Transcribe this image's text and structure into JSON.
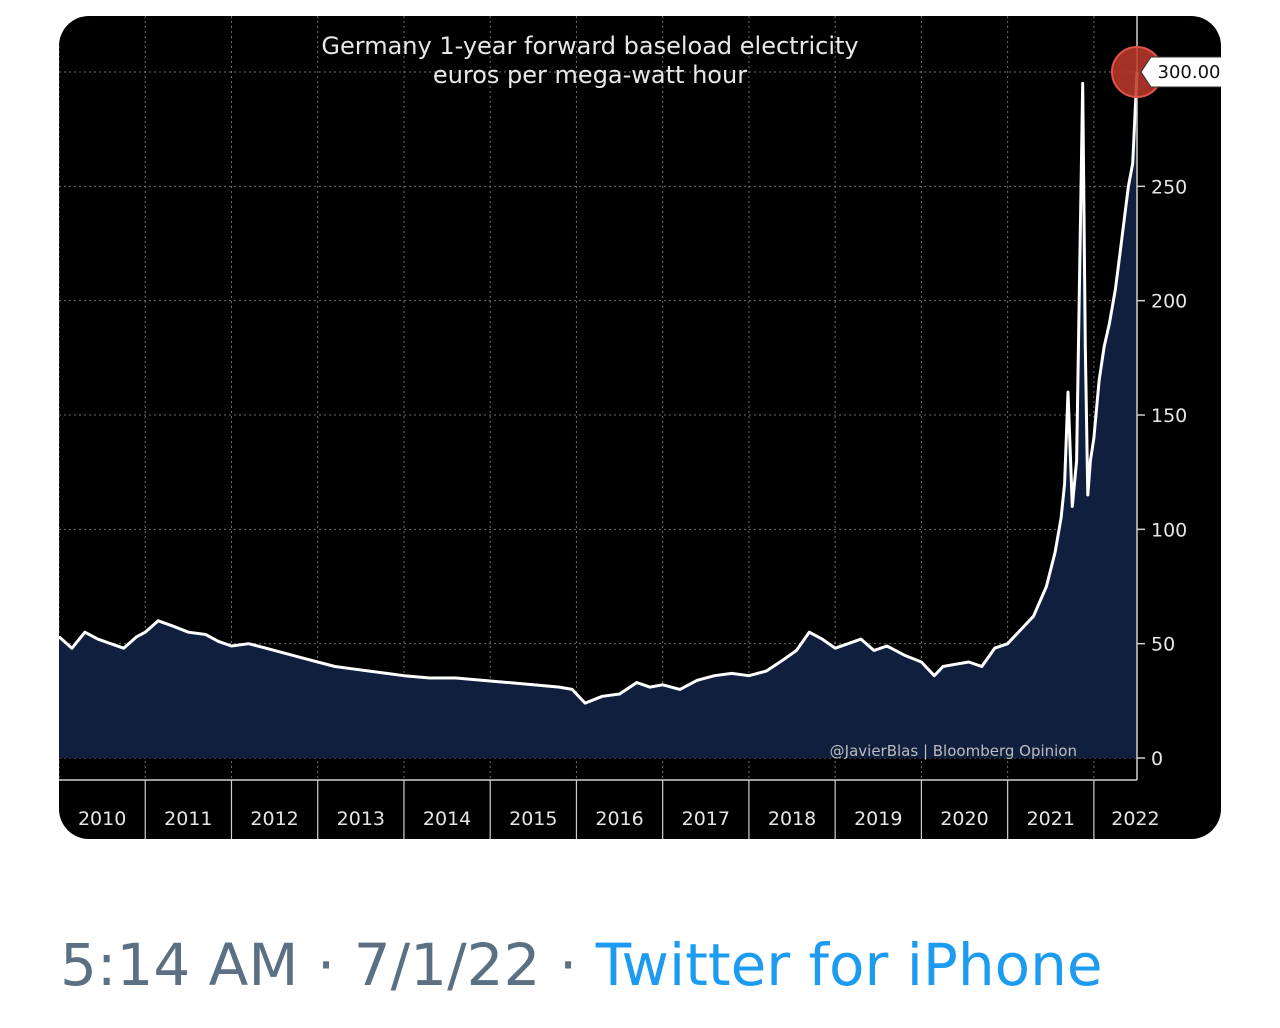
{
  "tweet": {
    "time": "5:14 AM",
    "date": "7/1/22",
    "separator": "·",
    "source": "Twitter for iPhone",
    "source_color": "#1d9bf0"
  },
  "chart_data": {
    "type": "area",
    "title": "Germany 1-year forward baseload electricity",
    "subtitle": "euros per mega-watt hour",
    "credit": "@JavierBlas | Bloomberg Opinion",
    "x_labels": [
      "2010",
      "2011",
      "2012",
      "2013",
      "2014",
      "2015",
      "2016",
      "2017",
      "2018",
      "2019",
      "2020",
      "2021",
      "2022"
    ],
    "y_ticks": [
      0,
      50,
      100,
      150,
      200,
      250
    ],
    "y_tick_labels": [
      "0",
      "50",
      "100",
      "150",
      "200",
      "250"
    ],
    "ylim": [
      0,
      300
    ],
    "xlim": [
      2010.0,
      2022.5
    ],
    "last_value": 300,
    "last_value_label": "300.00",
    "series": [
      {
        "x": [
          2010.0,
          2010.15,
          2010.3,
          2010.45,
          2010.6,
          2010.75,
          2010.9,
          2011.0,
          2011.15,
          2011.3,
          2011.5,
          2011.7,
          2011.85,
          2012.0,
          2012.2,
          2012.4,
          2012.6,
          2012.8,
          2013.0,
          2013.2,
          2013.4,
          2013.6,
          2013.8,
          2014.0,
          2014.3,
          2014.6,
          2014.9,
          2015.2,
          2015.5,
          2015.8,
          2015.95,
          2016.1,
          2016.3,
          2016.5,
          2016.7,
          2016.85,
          2017.0,
          2017.2,
          2017.4,
          2017.6,
          2017.8,
          2018.0,
          2018.2,
          2018.4,
          2018.55,
          2018.7,
          2018.85,
          2019.0,
          2019.15,
          2019.3,
          2019.45,
          2019.6,
          2019.8,
          2020.0,
          2020.15,
          2020.25,
          2020.4,
          2020.55,
          2020.7,
          2020.85,
          2021.0,
          2021.15,
          2021.3,
          2021.45,
          2021.55,
          2021.62,
          2021.66,
          2021.7,
          2021.75,
          2021.8,
          2021.87,
          2021.9,
          2021.93,
          2021.96,
          2022.0,
          2022.06,
          2022.12,
          2022.18,
          2022.25,
          2022.3,
          2022.35,
          2022.4,
          2022.45,
          2022.5
        ],
        "values": [
          53,
          48,
          55,
          52,
          50,
          48,
          53,
          55,
          60,
          58,
          55,
          54,
          51,
          49,
          50,
          48,
          46,
          44,
          42,
          40,
          39,
          38,
          37,
          36,
          35,
          35,
          34,
          33,
          32,
          31,
          30,
          24,
          27,
          28,
          33,
          31,
          32,
          30,
          34,
          36,
          37,
          36,
          38,
          43,
          47,
          55,
          52,
          48,
          50,
          52,
          47,
          49,
          45,
          42,
          36,
          40,
          41,
          42,
          40,
          48,
          50,
          56,
          62,
          75,
          90,
          105,
          120,
          160,
          110,
          130,
          295,
          180,
          115,
          130,
          140,
          165,
          180,
          190,
          205,
          220,
          235,
          250,
          260,
          300
        ]
      }
    ],
    "colors": {
      "background": "#000000",
      "area_fill": "#0f1f3d",
      "line": "#ffffff",
      "grid": "#6f6f6f",
      "marker": "#c0392b"
    },
    "grid": true
  }
}
